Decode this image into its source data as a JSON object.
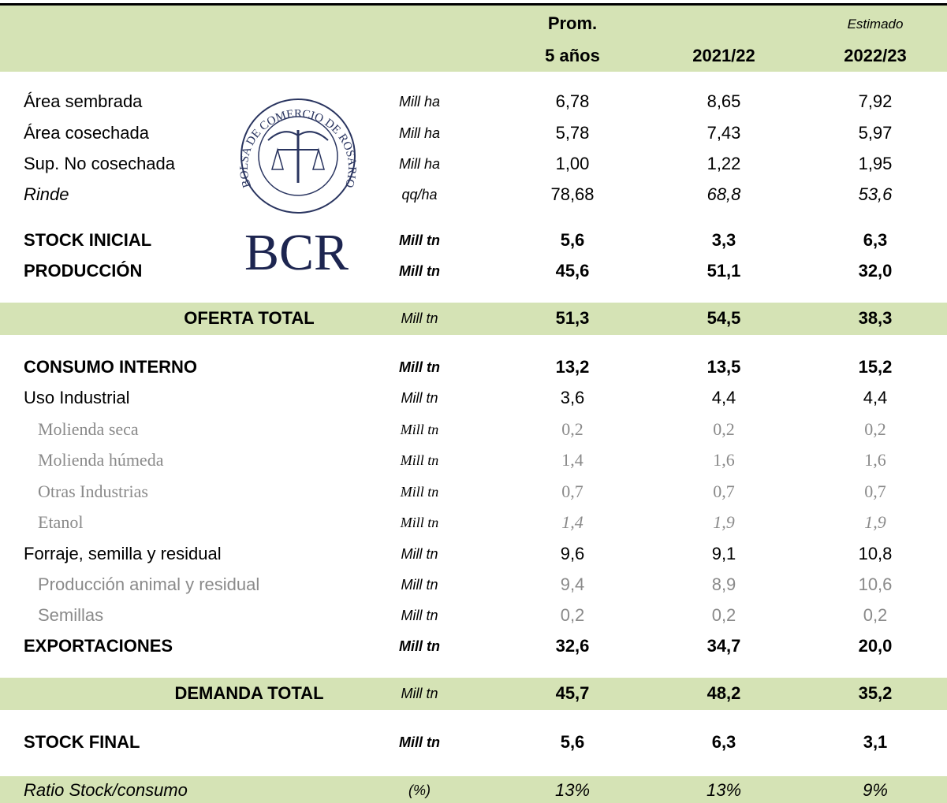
{
  "header": {
    "col1": [
      "Prom.",
      "5 años"
    ],
    "col2": "2021/22",
    "col3_note": "Estimado",
    "col3": "2022/23"
  },
  "logo": {
    "seal_text": "BOLSA DE COMERCIO DE ROSARIO",
    "name": "BCR"
  },
  "rows": [
    {
      "label": "Área sembrada",
      "unit": "Mill ha",
      "values": [
        "6,78",
        "8,65",
        "7,92"
      ]
    },
    {
      "label": "Área cosechada",
      "unit": "Mill ha",
      "values": [
        "5,78",
        "7,43",
        "5,97"
      ]
    },
    {
      "label": "Sup. No cosechada",
      "unit": "Mill ha",
      "values": [
        "1,00",
        "1,22",
        "1,95"
      ]
    },
    {
      "label": "Rinde",
      "unit": "qq/ha",
      "values": [
        "78,68",
        "68,8",
        "53,6"
      ]
    },
    {
      "label": "STOCK INICIAL",
      "unit": "Mill tn",
      "values": [
        "5,6",
        "3,3",
        "6,3"
      ]
    },
    {
      "label": "PRODUCCIÓN",
      "unit": "Mill tn",
      "values": [
        "45,6",
        "51,1",
        "32,0"
      ]
    },
    {
      "label": "OFERTA TOTAL",
      "unit": "Mill tn",
      "values": [
        "51,3",
        "54,5",
        "38,3"
      ]
    },
    {
      "label": "CONSUMO INTERNO",
      "unit": "Mill tn",
      "values": [
        "13,2",
        "13,5",
        "15,2"
      ]
    },
    {
      "label": "Uso Industrial",
      "unit": "Mill tn",
      "values": [
        "3,6",
        "4,4",
        "4,4"
      ]
    },
    {
      "label": "Molienda seca",
      "unit": "Mill tn",
      "values": [
        "0,2",
        "0,2",
        "0,2"
      ]
    },
    {
      "label": "Molienda húmeda",
      "unit": "Mill tn",
      "values": [
        "1,4",
        "1,6",
        "1,6"
      ]
    },
    {
      "label": "Otras Industrias",
      "unit": "Mill tn",
      "values": [
        "0,7",
        "0,7",
        "0,7"
      ]
    },
    {
      "label": "Etanol",
      "unit": "Mill tn",
      "values": [
        "1,4",
        "1,9",
        "1,9"
      ]
    },
    {
      "label": "Forraje, semilla y residual",
      "unit": "Mill tn",
      "values": [
        "9,6",
        "9,1",
        "10,8"
      ]
    },
    {
      "label": "Producción animal y residual",
      "unit": "Mill tn",
      "values": [
        "9,4",
        "8,9",
        "10,6"
      ]
    },
    {
      "label": "Semillas",
      "unit": "Mill tn",
      "values": [
        "0,2",
        "0,2",
        "0,2"
      ]
    },
    {
      "label": "EXPORTACIONES",
      "unit": "Mill tn",
      "values": [
        "32,6",
        "34,7",
        "20,0"
      ]
    },
    {
      "label": "DEMANDA TOTAL",
      "unit": "Mill tn",
      "values": [
        "45,7",
        "48,2",
        "35,2"
      ]
    },
    {
      "label": "STOCK FINAL",
      "unit": "Mill tn",
      "values": [
        "5,6",
        "6,3",
        "3,1"
      ]
    },
    {
      "label": "Ratio Stock/consumo",
      "unit": "(%)",
      "values": [
        "13%",
        "13%",
        "9%"
      ]
    }
  ]
}
